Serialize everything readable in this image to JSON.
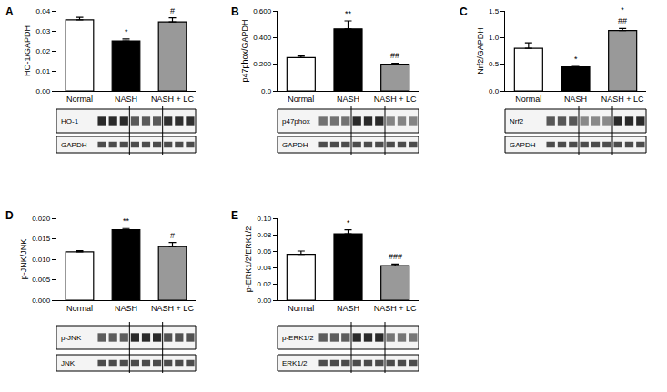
{
  "chart_data": [
    {
      "type": "bar",
      "title": "A",
      "y_label": "HO-1/GAPDH",
      "categories": [
        "Normal",
        "NASH",
        "NASH + LC"
      ],
      "values": [
        0.0355,
        0.025,
        0.0345
      ],
      "errors": [
        0.0013,
        0.001,
        0.002
      ],
      "colors": [
        "#ffffff",
        "#000000",
        "#999999"
      ],
      "ylim": [
        0,
        0.04
      ],
      "yticks": [
        {
          "value": 0,
          "label": "0.00"
        },
        {
          "value": 0.01,
          "label": "0.01"
        },
        {
          "value": 0.02,
          "label": "0.02"
        },
        {
          "value": 0.03,
          "label": "0.03"
        },
        {
          "value": 0.04,
          "label": "0.04"
        }
      ],
      "annotations": [
        {
          "category": "NASH",
          "lines": [
            "*"
          ]
        },
        {
          "category": "NASH + LC",
          "lines": [
            "#"
          ]
        }
      ],
      "blots": [
        "HO-1",
        "GAPDH"
      ]
    },
    {
      "type": "bar",
      "title": "B",
      "y_label": "p47phox/GAPDH",
      "categories": [
        "Normal",
        "NASH",
        "NASH + LC"
      ],
      "values": [
        0.25,
        0.465,
        0.2
      ],
      "errors": [
        0.012,
        0.06,
        0.008
      ],
      "colors": [
        "#ffffff",
        "#000000",
        "#999999"
      ],
      "ylim": [
        0,
        0.6
      ],
      "yticks": [
        {
          "value": 0,
          "label": "0.0"
        },
        {
          "value": 0.2,
          "label": "0.200"
        },
        {
          "value": 0.4,
          "label": "0.400"
        },
        {
          "value": 0.6,
          "label": "0.600"
        }
      ],
      "annotations": [
        {
          "category": "NASH",
          "lines": [
            "**"
          ]
        },
        {
          "category": "NASH + LC",
          "lines": [
            "##"
          ]
        }
      ],
      "blots": [
        "p47phox",
        "GAPDH"
      ]
    },
    {
      "type": "bar",
      "title": "C",
      "y_label": "Nrf2/GAPDH",
      "categories": [
        "Normal",
        "NASH",
        "NASH + LC"
      ],
      "values": [
        0.8,
        0.45,
        1.13
      ],
      "errors": [
        0.1,
        0.01,
        0.04
      ],
      "colors": [
        "#ffffff",
        "#000000",
        "#999999"
      ],
      "ylim": [
        0,
        1.5
      ],
      "yticks": [
        {
          "value": 0,
          "label": "0.0"
        },
        0.5,
        {
          "value": 1,
          "label": "1.0"
        },
        1.5
      ],
      "annotations": [
        {
          "category": "NASH",
          "lines": [
            "*"
          ]
        },
        {
          "category": "NASH + LC",
          "lines": [
            "*",
            "##"
          ]
        }
      ],
      "blots": [
        "Nrf2",
        "GAPDH"
      ]
    },
    {
      "type": "bar",
      "title": "D",
      "y_label": "p-JNK/JNK",
      "categories": [
        "Normal",
        "NASH",
        "NASH + LC"
      ],
      "values": [
        0.0118,
        0.0172,
        0.0131
      ],
      "errors": [
        0.0003,
        0.0003,
        0.001
      ],
      "colors": [
        "#ffffff",
        "#000000",
        "#999999"
      ],
      "ylim": [
        0,
        0.02
      ],
      "yticks": [
        {
          "value": 0,
          "label": "0.000"
        },
        {
          "value": 0.005,
          "label": "0.005"
        },
        {
          "value": 0.01,
          "label": "0.010"
        },
        {
          "value": 0.015,
          "label": "0.015"
        },
        {
          "value": 0.02,
          "label": "0.020"
        }
      ],
      "annotations": [
        {
          "category": "NASH",
          "lines": [
            "**"
          ]
        },
        {
          "category": "NASH + LC",
          "lines": [
            "#"
          ]
        }
      ],
      "blots": [
        "p-JNK",
        "JNK"
      ]
    },
    {
      "type": "bar",
      "title": "E",
      "y_label": "p-ERK1/2/ERK1/2",
      "categories": [
        "Normal",
        "NASH",
        "NASH + LC"
      ],
      "values": [
        0.056,
        0.081,
        0.042
      ],
      "errors": [
        0.004,
        0.005,
        0.002
      ],
      "colors": [
        "#ffffff",
        "#000000",
        "#999999"
      ],
      "ylim": [
        0,
        0.1
      ],
      "yticks": [
        {
          "value": 0,
          "label": "0.00"
        },
        {
          "value": 0.02,
          "label": "0.02"
        },
        {
          "value": 0.04,
          "label": "0.04"
        },
        {
          "value": 0.06,
          "label": "0.06"
        },
        {
          "value": 0.08,
          "label": "0.08"
        },
        {
          "value": 0.1,
          "label": "0.10"
        }
      ],
      "annotations": [
        {
          "category": "NASH",
          "lines": [
            "*"
          ]
        },
        {
          "category": "NASH + LC",
          "lines": [
            "###"
          ]
        }
      ],
      "blots": [
        "p-ERK1/2",
        "ERK1/2"
      ]
    }
  ]
}
